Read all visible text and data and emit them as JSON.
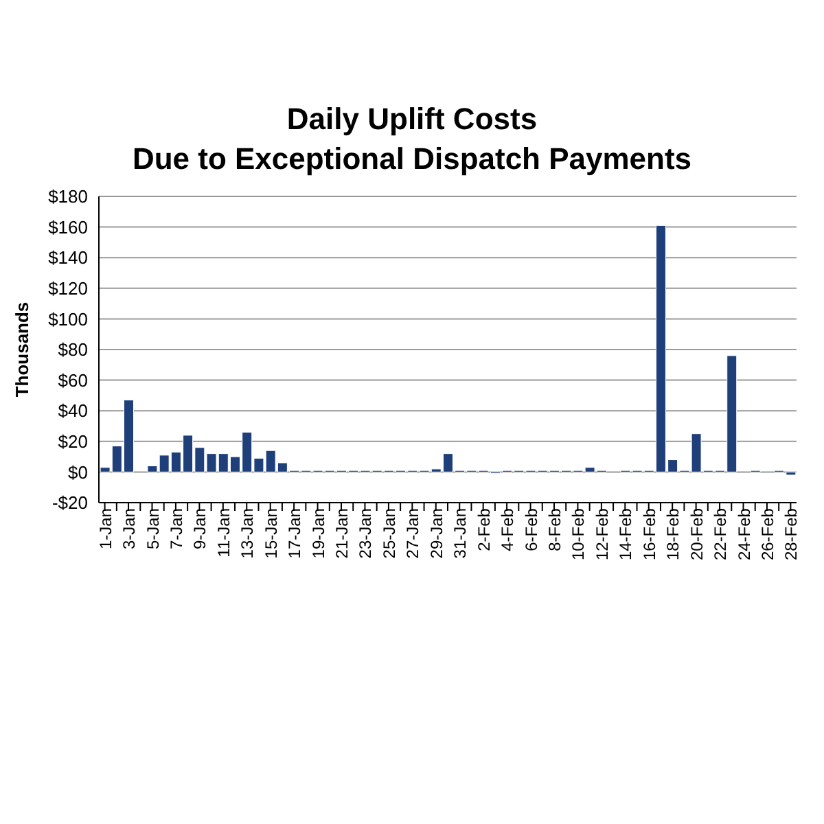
{
  "chart_data": {
    "type": "bar",
    "title": "Daily Uplift Costs\nDue to Exceptional Dispatch Payments",
    "ylabel": "Thousands",
    "categories": [
      "1-Jan",
      null,
      "3-Jan",
      null,
      "5-Jan",
      null,
      "7-Jan",
      null,
      "9-Jan",
      null,
      "11-Jan",
      null,
      "13-Jan",
      null,
      "15-Jan",
      null,
      "17-Jan",
      null,
      "19-Jan",
      null,
      "21-Jan",
      null,
      "23-Jan",
      null,
      "25-Jan",
      null,
      "27-Jan",
      null,
      "29-Jan",
      null,
      "31-Jan",
      null,
      "2-Feb",
      null,
      "4-Feb",
      null,
      "6-Feb",
      null,
      "8-Feb",
      null,
      "10-Feb",
      null,
      "12-Feb",
      null,
      "14-Feb",
      null,
      "16-Feb",
      null,
      "18-Feb",
      null,
      "20-Feb",
      null,
      "22-Feb",
      null,
      "24-Feb",
      null,
      "26-Feb",
      null,
      "28-Feb"
    ],
    "values": [
      3,
      17,
      47,
      0,
      4,
      11,
      13,
      24,
      16,
      12,
      12,
      10,
      26,
      9,
      14,
      6,
      1,
      1,
      1,
      1,
      1,
      1,
      1,
      1,
      1,
      1,
      1,
      1,
      2,
      12,
      1,
      1,
      1,
      -1,
      1,
      1,
      1,
      1,
      1,
      1,
      1,
      3,
      1,
      0,
      1,
      1,
      1,
      161,
      8,
      1,
      25,
      1,
      1,
      76,
      0,
      1,
      0,
      1,
      -2
    ],
    "color": "#1f3f7a",
    "ylim": [
      -20,
      180
    ],
    "yticks": [
      {
        "value": -20,
        "label": "-$20"
      },
      {
        "value": 0,
        "label": "$0"
      },
      {
        "value": 20,
        "label": "$20"
      },
      {
        "value": 40,
        "label": "$40"
      },
      {
        "value": 60,
        "label": "$60"
      },
      {
        "value": 80,
        "label": "$80"
      },
      {
        "value": 100,
        "label": "$100"
      },
      {
        "value": 120,
        "label": "$120"
      },
      {
        "value": 140,
        "label": "$140"
      },
      {
        "value": 160,
        "label": "$160"
      },
      {
        "value": 180,
        "label": "$180"
      }
    ],
    "grid": "y"
  }
}
